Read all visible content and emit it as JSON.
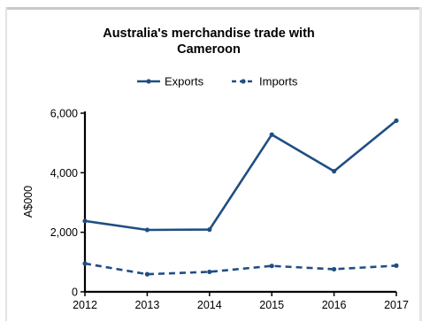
{
  "chart_data": {
    "type": "line",
    "title_lines": [
      "Australia's merchandise trade with",
      "Cameroon"
    ],
    "ylabel": "A$000",
    "xlabel": "",
    "x": [
      2012,
      2013,
      2014,
      2015,
      2016,
      2017
    ],
    "x_tick_labels": [
      "2012",
      "2013",
      "2014",
      "2015",
      "2016",
      "2017"
    ],
    "ylim": [
      0,
      6000
    ],
    "y_ticks": [
      0,
      2000,
      4000,
      6000
    ],
    "y_tick_labels": [
      "0",
      "2,000",
      "4,000",
      "6,000"
    ],
    "legend_position": "top-center",
    "grid": false,
    "series": [
      {
        "name": "Exports",
        "style": "solid",
        "color": "#1f4e83",
        "values": [
          2380,
          2080,
          2090,
          5280,
          4050,
          5750
        ]
      },
      {
        "name": "Imports",
        "style": "dashed",
        "color": "#1f4e83",
        "values": [
          950,
          590,
          670,
          870,
          760,
          880
        ]
      }
    ]
  }
}
